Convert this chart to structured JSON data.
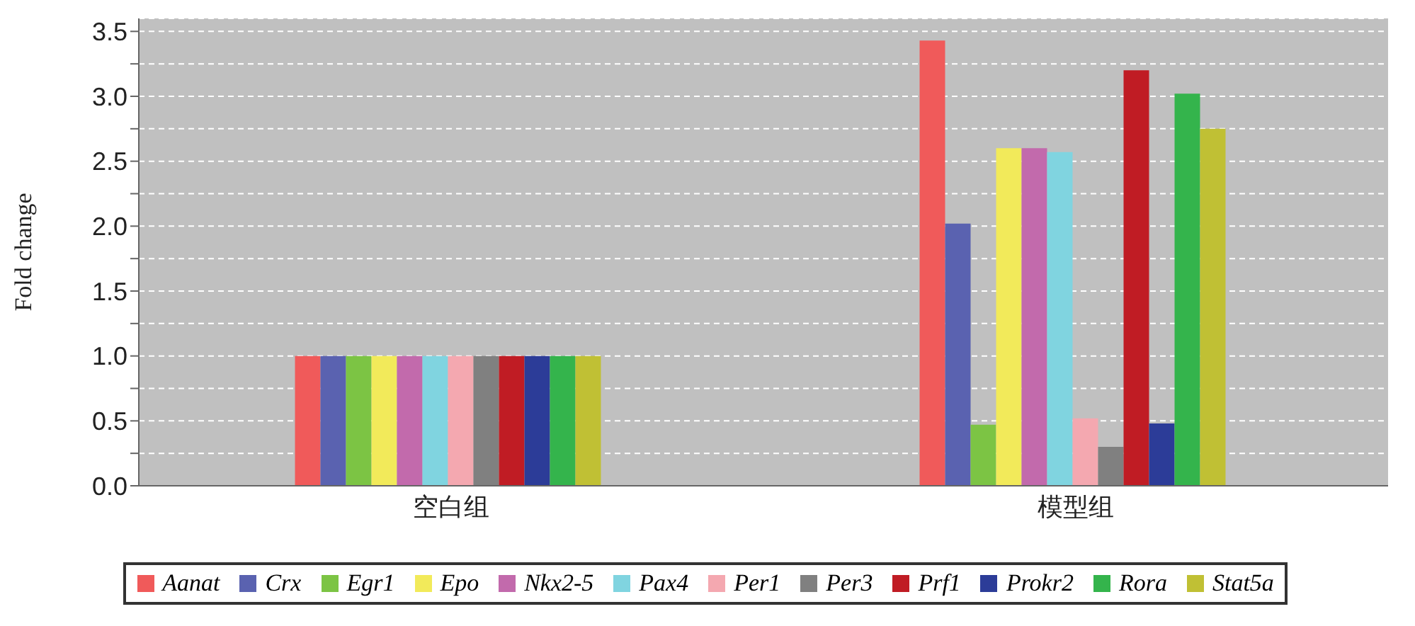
{
  "chart_data": {
    "type": "bar",
    "ylabel": "Fold change",
    "categories": [
      "空白组",
      "模型组"
    ],
    "series": [
      {
        "name": "Aanat",
        "color": "#f05a5a",
        "values": [
          1.0,
          3.43
        ]
      },
      {
        "name": "Crx",
        "color": "#5a62b0",
        "values": [
          1.0,
          2.02
        ]
      },
      {
        "name": "Egr1",
        "color": "#7cc444",
        "values": [
          1.0,
          0.47
        ]
      },
      {
        "name": "Epo",
        "color": "#f2ea5a",
        "values": [
          1.0,
          2.6
        ]
      },
      {
        "name": "Nkx2-5",
        "color": "#c26aac",
        "values": [
          1.0,
          2.6
        ]
      },
      {
        "name": "Pax4",
        "color": "#80d4e0",
        "values": [
          1.0,
          2.57
        ]
      },
      {
        "name": "Per1",
        "color": "#f4a8b0",
        "values": [
          1.0,
          0.52
        ]
      },
      {
        "name": "Per3",
        "color": "#808080",
        "values": [
          1.0,
          0.3
        ]
      },
      {
        "name": "Prf1",
        "color": "#c01c24",
        "values": [
          1.0,
          3.2
        ]
      },
      {
        "name": "Prokr2",
        "color": "#2c3c98",
        "values": [
          1.0,
          0.48
        ]
      },
      {
        "name": "Rora",
        "color": "#34b44c",
        "values": [
          1.0,
          3.02
        ]
      },
      {
        "name": "Stat5a",
        "color": "#c0c034",
        "values": [
          1.0,
          2.75
        ]
      }
    ],
    "ylim": [
      0,
      3.6
    ],
    "yticks": [
      {
        "value": 0,
        "label": "0.0"
      },
      {
        "value": 0.25,
        "label": null
      },
      {
        "value": 0.5,
        "label": "0.5"
      },
      {
        "value": 0.75,
        "label": null
      },
      {
        "value": 1,
        "label": "1.0"
      },
      {
        "value": 1.25,
        "label": null
      },
      {
        "value": 1.5,
        "label": "1.5"
      },
      {
        "value": 1.75,
        "label": null
      },
      {
        "value": 2,
        "label": "2.0"
      },
      {
        "value": 2.25,
        "label": null
      },
      {
        "value": 2.5,
        "label": "2.5"
      },
      {
        "value": 2.75,
        "label": null
      },
      {
        "value": 3,
        "label": "3.0"
      },
      {
        "value": 3.25,
        "label": null
      },
      {
        "value": 3.5,
        "label": "3.5"
      }
    ],
    "grid": true,
    "legend": "bottom"
  }
}
